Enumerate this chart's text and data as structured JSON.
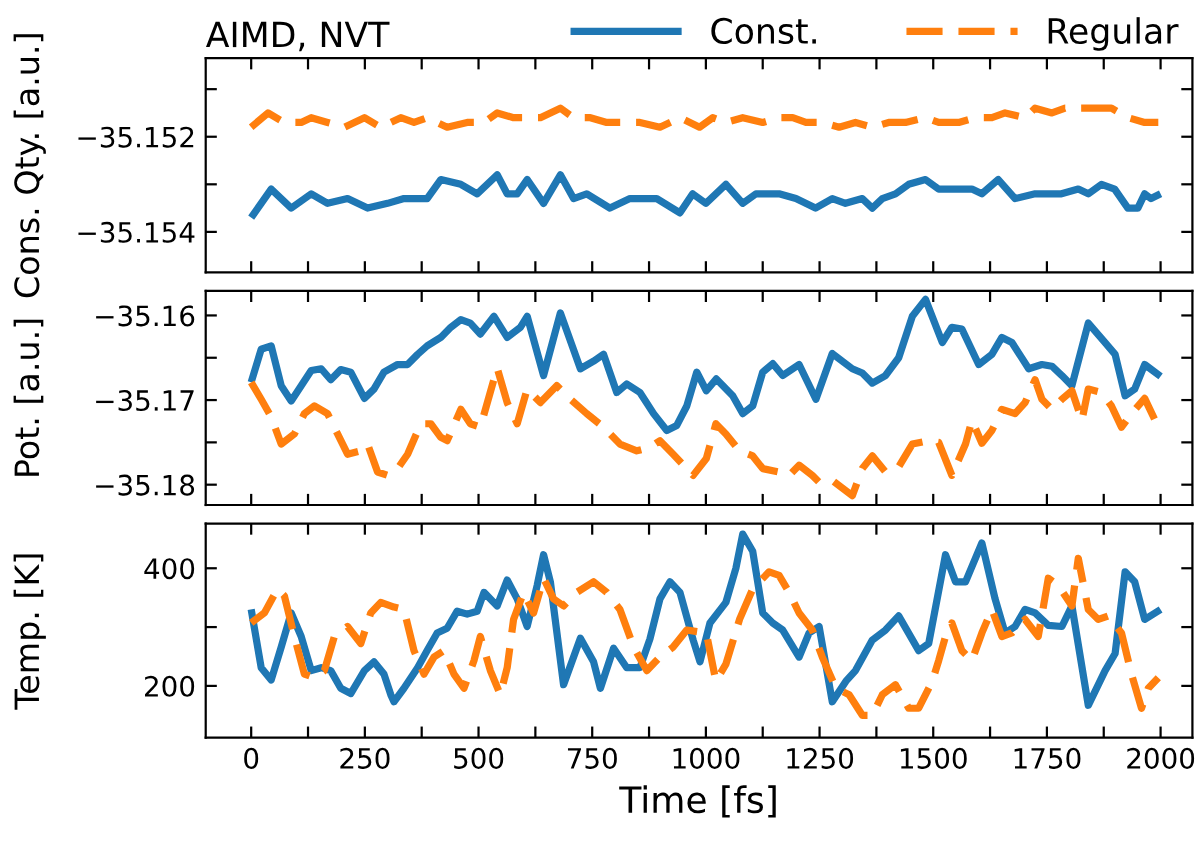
{
  "chart_data": [
    {
      "type": "line",
      "title": "AIMD, NVT",
      "ylabel": "Cons. Qty. [a.u.]",
      "legend": "top right",
      "tick_labels": "y",
      "marker": "none",
      "grid": false,
      "xlim": [
        -100,
        2070
      ],
      "xticks": [
        0,
        {
          "value": 125,
          "label": null
        },
        250,
        {
          "value": 375,
          "label": null
        },
        500,
        {
          "value": 625,
          "label": null
        },
        750,
        {
          "value": 875,
          "label": null
        },
        1000,
        {
          "value": 1125,
          "label": null
        },
        1250,
        {
          "value": 1375,
          "label": null
        },
        1500,
        {
          "value": 1625,
          "label": null
        },
        1750,
        {
          "value": 1875,
          "label": null
        },
        2000
      ],
      "ylim": [
        -35.15485,
        -35.15035
      ],
      "yticks": [
        {
          "value": -35.151,
          "label": null
        },
        {
          "value": -35.152,
          "label": "−35.152"
        },
        {
          "value": -35.153,
          "label": null
        },
        {
          "value": -35.154,
          "label": "−35.154"
        }
      ],
      "series": [
        {
          "name": "Const.",
          "color": "#1f77b4",
          "line_style": "solid",
          "x": [
            0,
            44,
            88,
            132,
            168,
            212,
            256,
            300,
            336,
            387,
            417,
            461,
            497,
            541,
            563,
            585,
            607,
            643,
            680,
            709,
            738,
            789,
            833,
            892,
            943,
            971,
            1000,
            1044,
            1081,
            1110,
            1161,
            1198,
            1241,
            1278,
            1307,
            1344,
            1366,
            1388,
            1417,
            1446,
            1483,
            1512,
            1556,
            1585,
            1607,
            1643,
            1680,
            1724,
            1760,
            1782,
            1819,
            1841,
            1870,
            1899,
            1928,
            1950,
            1965,
            1979,
            2000
          ],
          "values": [
            -35.1537,
            -35.1531,
            -35.1535,
            -35.1532,
            -35.1534,
            -35.1533,
            -35.1535,
            -35.1534,
            -35.1533,
            -35.1533,
            -35.1529,
            -35.153,
            -35.1532,
            -35.1528,
            -35.1532,
            -35.1532,
            -35.1529,
            -35.1534,
            -35.1528,
            -35.1533,
            -35.1532,
            -35.1535,
            -35.1533,
            -35.1533,
            -35.1536,
            -35.1532,
            -35.1534,
            -35.153,
            -35.1534,
            -35.1532,
            -35.1532,
            -35.1533,
            -35.1535,
            -35.1533,
            -35.1534,
            -35.1533,
            -35.1535,
            -35.1533,
            -35.1532,
            -35.153,
            -35.1529,
            -35.1531,
            -35.1531,
            -35.1531,
            -35.1532,
            -35.1529,
            -35.1533,
            -35.1532,
            -35.1532,
            -35.1532,
            -35.1531,
            -35.1532,
            -35.153,
            -35.1531,
            -35.1535,
            -35.1535,
            -35.1532,
            -35.1533,
            -35.1532
          ]
        },
        {
          "name": "Regular",
          "color": "#ff7f0e",
          "line_style": "dashed",
          "x": [
            0,
            37,
            73,
            110,
            132,
            168,
            205,
            249,
            285,
            329,
            358,
            387,
            431,
            475,
            512,
            541,
            577,
            607,
            636,
            680,
            709,
            746,
            782,
            819,
            855,
            899,
            943,
            986,
            1015,
            1044,
            1081,
            1125,
            1161,
            1191,
            1220,
            1256,
            1293,
            1329,
            1366,
            1402,
            1439,
            1483,
            1512,
            1556,
            1593,
            1629,
            1658,
            1702,
            1724,
            1761,
            1790,
            1819,
            1848,
            1892,
            1929,
            1965,
            1995
          ],
          "values": [
            -35.1518,
            -35.1515,
            -35.1517,
            -35.1517,
            -35.1516,
            -35.1517,
            -35.1518,
            -35.1516,
            -35.1518,
            -35.1516,
            -35.1517,
            -35.1516,
            -35.1518,
            -35.1517,
            -35.1517,
            -35.1515,
            -35.1516,
            -35.1516,
            -35.1516,
            -35.1514,
            -35.1516,
            -35.1516,
            -35.1517,
            -35.1517,
            -35.1517,
            -35.1518,
            -35.1516,
            -35.1518,
            -35.1516,
            -35.1517,
            -35.1516,
            -35.1517,
            -35.1516,
            -35.1516,
            -35.1517,
            -35.1517,
            -35.1518,
            -35.1517,
            -35.1518,
            -35.1517,
            -35.1517,
            -35.1516,
            -35.1517,
            -35.1517,
            -35.1516,
            -35.1516,
            -35.1515,
            -35.1516,
            -35.1514,
            -35.1515,
            -35.1514,
            -35.1514,
            -35.1514,
            -35.1514,
            -35.1516,
            -35.1517,
            -35.1517
          ]
        }
      ]
    },
    {
      "type": "line",
      "ylabel": "Pot. [a.u.]",
      "tick_labels": "y",
      "marker": "none",
      "grid": false,
      "xlim": [
        -100,
        2070
      ],
      "xticks": [
        0,
        {
          "value": 125,
          "label": null
        },
        250,
        {
          "value": 375,
          "label": null
        },
        500,
        {
          "value": 625,
          "label": null
        },
        750,
        {
          "value": 875,
          "label": null
        },
        1000,
        {
          "value": 1125,
          "label": null
        },
        1250,
        {
          "value": 1375,
          "label": null
        },
        1500,
        {
          "value": 1625,
          "label": null
        },
        1750,
        {
          "value": 1875,
          "label": null
        },
        2000
      ],
      "ylim": [
        -35.1824,
        -35.1571
      ],
      "yticks": [
        {
          "value": -35.16,
          "label": "−35.16"
        },
        {
          "value": -35.165,
          "label": null
        },
        {
          "value": -35.17,
          "label": "−35.17"
        },
        {
          "value": -35.175,
          "label": null
        },
        {
          "value": -35.18,
          "label": "−35.18"
        }
      ],
      "series": [
        {
          "color": "#1f77b4",
          "line_style": "solid",
          "x": [
            0,
            22,
            44,
            66,
            88,
            110,
            132,
            154,
            175,
            197,
            219,
            249,
            270,
            292,
            322,
            344,
            366,
            387,
            417,
            439,
            461,
            482,
            504,
            534,
            563,
            592,
            607,
            643,
            680,
            724,
            753,
            775,
            804,
            826,
            855,
            885,
            914,
            936,
            958,
            980,
            1001,
            1023,
            1059,
            1081,
            1103,
            1125,
            1147,
            1169,
            1205,
            1242,
            1278,
            1322,
            1344,
            1366,
            1395,
            1424,
            1454,
            1483,
            1520,
            1541,
            1563,
            1600,
            1629,
            1651,
            1673,
            1710,
            1739,
            1761,
            1783,
            1805,
            1841,
            1878,
            1900,
            1922,
            1943,
            1965,
            2000
          ],
          "values": [
            -35.1679,
            -35.164,
            -35.1636,
            -35.1683,
            -35.1701,
            -35.1683,
            -35.1665,
            -35.1663,
            -35.1676,
            -35.1664,
            -35.1667,
            -35.1698,
            -35.1687,
            -35.1667,
            -35.1658,
            -35.1658,
            -35.1646,
            -35.1636,
            -35.1626,
            -35.1614,
            -35.1605,
            -35.1609,
            -35.1622,
            -35.1601,
            -35.1626,
            -35.1614,
            -35.1601,
            -35.1671,
            -35.1597,
            -35.1663,
            -35.1654,
            -35.1646,
            -35.1691,
            -35.1681,
            -35.1691,
            -35.1716,
            -35.1736,
            -35.173,
            -35.1707,
            -35.1667,
            -35.1689,
            -35.1675,
            -35.1695,
            -35.1716,
            -35.1707,
            -35.1667,
            -35.1657,
            -35.1671,
            -35.1658,
            -35.1699,
            -35.1645,
            -35.1663,
            -35.1668,
            -35.168,
            -35.1671,
            -35.165,
            -35.1601,
            -35.1581,
            -35.1632,
            -35.1614,
            -35.1616,
            -35.1658,
            -35.1646,
            -35.1626,
            -35.1632,
            -35.1663,
            -35.1658,
            -35.166,
            -35.1671,
            -35.1683,
            -35.1609,
            -35.1632,
            -35.1646,
            -35.1695,
            -35.1687,
            -35.1658,
            -35.1672
          ]
        },
        {
          "color": "#ff7f0e",
          "line_style": "dashed",
          "x": [
            0,
            22,
            44,
            66,
            95,
            117,
            139,
            168,
            190,
            212,
            241,
            256,
            278,
            300,
            322,
            344,
            373,
            395,
            417,
            431,
            461,
            482,
            504,
            541,
            563,
            585,
            607,
            636,
            672,
            702,
            738,
            775,
            811,
            848,
            877,
            899,
            928,
            972,
            1001,
            1022,
            1044,
            1074,
            1103,
            1125,
            1161,
            1183,
            1205,
            1234,
            1249,
            1278,
            1322,
            1344,
            1366,
            1395,
            1424,
            1454,
            1490,
            1512,
            1541,
            1571,
            1585,
            1607,
            1629,
            1651,
            1680,
            1702,
            1724,
            1739,
            1761,
            1783,
            1805,
            1827,
            1841,
            1870,
            1892,
            1914,
            1936,
            1965,
            1995
          ],
          "values": [
            -35.1679,
            -35.1699,
            -35.172,
            -35.1752,
            -35.174,
            -35.1716,
            -35.1707,
            -35.1716,
            -35.174,
            -35.1764,
            -35.176,
            -35.1752,
            -35.1785,
            -35.1789,
            -35.1781,
            -35.1764,
            -35.1728,
            -35.1728,
            -35.1744,
            -35.1748,
            -35.1711,
            -35.1728,
            -35.1732,
            -35.1662,
            -35.1703,
            -35.1728,
            -35.1687,
            -35.1703,
            -35.1683,
            -35.1699,
            -35.1716,
            -35.1732,
            -35.1752,
            -35.176,
            -35.1756,
            -35.1748,
            -35.1764,
            -35.1789,
            -35.1769,
            -35.1728,
            -35.174,
            -35.176,
            -35.1766,
            -35.1781,
            -35.1785,
            -35.1789,
            -35.1777,
            -35.1789,
            -35.1797,
            -35.1795,
            -35.1813,
            -35.1781,
            -35.1766,
            -35.1785,
            -35.1779,
            -35.1752,
            -35.1748,
            -35.175,
            -35.1789,
            -35.1752,
            -35.1724,
            -35.1751,
            -35.1736,
            -35.1711,
            -35.1716,
            -35.1703,
            -35.1676,
            -35.1699,
            -35.1711,
            -35.1699,
            -35.1689,
            -35.1724,
            -35.1687,
            -35.1691,
            -35.1707,
            -35.1732,
            -35.1716,
            -35.1698,
            -35.1732
          ]
        }
      ]
    },
    {
      "type": "line",
      "ylabel": "Temp. [K]",
      "xlabel": "Time [fs]",
      "marker": "none",
      "grid": false,
      "xlim": [
        -100,
        2070
      ],
      "xticks": [
        0,
        {
          "value": 125,
          "label": null
        },
        250,
        {
          "value": 375,
          "label": null
        },
        500,
        {
          "value": 625,
          "label": null
        },
        750,
        {
          "value": 875,
          "label": null
        },
        1000,
        {
          "value": 1125,
          "label": null
        },
        1250,
        {
          "value": 1375,
          "label": null
        },
        1500,
        {
          "value": 1625,
          "label": null
        },
        1750,
        {
          "value": 1875,
          "label": null
        },
        2000
      ],
      "ylim": [
        112,
        476
      ],
      "yticks": [
        200,
        {
          "value": 300,
          "label": null
        },
        400
      ],
      "series": [
        {
          "color": "#1f77b4",
          "line_style": "solid",
          "x": [
            0,
            22,
            44,
            66,
            88,
            110,
            132,
            154,
            175,
            197,
            219,
            249,
            270,
            292,
            307,
            314,
            336,
            366,
            387,
            409,
            431,
            453,
            475,
            497,
            512,
            541,
            563,
            585,
            607,
            629,
            643,
            658,
            687,
            724,
            753,
            768,
            797,
            826,
            855,
            877,
            899,
            921,
            943,
            972,
            987,
            1009,
            1044,
            1066,
            1081,
            1103,
            1125,
            1147,
            1169,
            1205,
            1227,
            1249,
            1278,
            1308,
            1329,
            1366,
            1395,
            1424,
            1468,
            1490,
            1527,
            1549,
            1571,
            1607,
            1636,
            1658,
            1680,
            1702,
            1724,
            1753,
            1783,
            1805,
            1841,
            1878,
            1900,
            1922,
            1943,
            1965,
            2000
          ],
          "values": [
            330,
            231,
            210,
            266,
            324,
            284,
            226,
            231,
            226,
            196,
            187,
            226,
            241,
            220,
            185,
            173,
            196,
            231,
            260,
            290,
            298,
            327,
            322,
            327,
            359,
            336,
            380,
            348,
            301,
            371,
            423,
            377,
            202,
            281,
            241,
            196,
            264,
            231,
            231,
            280,
            348,
            377,
            359,
            278,
            241,
            307,
            342,
            400,
            458,
            429,
            324,
            307,
            295,
            249,
            290,
            301,
            173,
            208,
            226,
            278,
            295,
            319,
            260,
            272,
            423,
            377,
            377,
            443,
            348,
            290,
            301,
            330,
            324,
            303,
            301,
            336,
            167,
            226,
            255,
            394,
            377,
            313,
            330
          ]
        },
        {
          "color": "#ff7f0e",
          "line_style": "dashed",
          "x": [
            0,
            29,
            58,
            73,
            95,
            117,
            139,
            161,
            183,
            212,
            241,
            263,
            285,
            314,
            336,
            358,
            380,
            402,
            424,
            446,
            468,
            490,
            504,
            526,
            548,
            563,
            577,
            599,
            621,
            643,
            665,
            687,
            716,
            753,
            782,
            811,
            841,
            870,
            899,
            928,
            958,
            1001,
            1022,
            1044,
            1074,
            1103,
            1139,
            1161,
            1183,
            1205,
            1234,
            1256,
            1286,
            1315,
            1344,
            1366,
            1388,
            1417,
            1446,
            1468,
            1498,
            1512,
            1527,
            1541,
            1563,
            1585,
            1607,
            1629,
            1651,
            1673,
            1702,
            1731,
            1753,
            1775,
            1805,
            1819,
            1841,
            1863,
            1885,
            1914,
            1936,
            1958,
            1973,
            1995
          ],
          "values": [
            307,
            324,
            365,
            353,
            284,
            220,
            214,
            226,
            284,
            301,
            272,
            324,
            342,
            334,
            330,
            260,
            220,
            249,
            260,
            220,
            196,
            243,
            284,
            226,
            185,
            231,
            313,
            359,
            324,
            383,
            348,
            336,
            359,
            377,
            359,
            330,
            266,
            226,
            249,
            266,
            295,
            290,
            208,
            237,
            313,
            365,
            394,
            388,
            359,
            324,
            295,
            249,
            196,
            185,
            150,
            150,
            185,
            202,
            162,
            162,
            208,
            243,
            284,
            307,
            260,
            243,
            290,
            330,
            284,
            290,
            313,
            284,
            383,
            371,
            336,
            417,
            330,
            313,
            319,
            290,
            220,
            162,
            196,
            214
          ]
        }
      ]
    }
  ]
}
